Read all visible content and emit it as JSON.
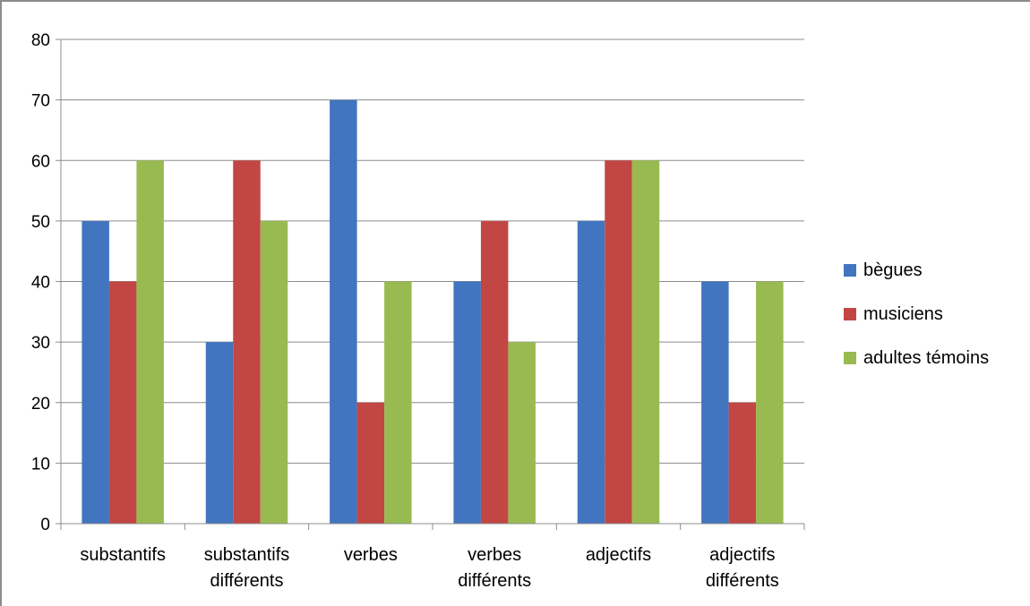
{
  "chart_data": {
    "type": "bar",
    "title": "",
    "xlabel": "",
    "ylabel": "",
    "categories": [
      [
        "substantifs"
      ],
      [
        "substantifs",
        "différents"
      ],
      [
        "verbes"
      ],
      [
        "verbes",
        "différents"
      ],
      [
        "adjectifs"
      ],
      [
        "adjectifs",
        "différents"
      ]
    ],
    "series": [
      {
        "name": "bègues",
        "color": "#4275BF",
        "values": [
          50,
          30,
          70,
          40,
          50,
          40
        ]
      },
      {
        "name": "musiciens",
        "color": "#C24744",
        "values": [
          40,
          60,
          20,
          50,
          60,
          20
        ]
      },
      {
        "name": "adultes témoins",
        "color": "#99BA50",
        "values": [
          60,
          50,
          40,
          30,
          60,
          40
        ]
      }
    ],
    "ylim": [
      0,
      80
    ],
    "yticks": [
      0,
      10,
      20,
      30,
      40,
      50,
      60,
      70,
      80
    ],
    "grid": true,
    "legend": "right"
  }
}
